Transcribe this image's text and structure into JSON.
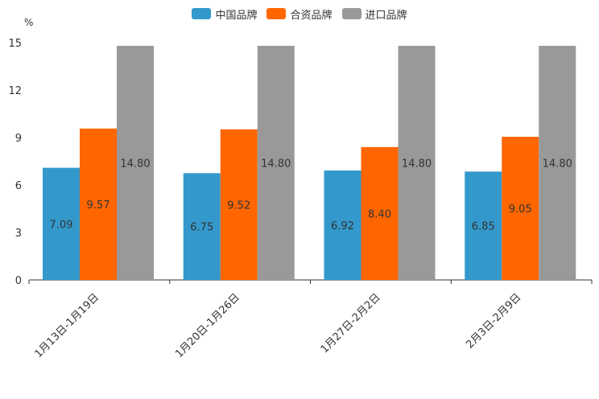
{
  "chart_data": {
    "type": "bar",
    "unit": "%",
    "categories": [
      "1月13日-1月19日",
      "1月20日-1月26日",
      "1月27日-2月2日",
      "2月3日-2月9日"
    ],
    "series": [
      {
        "name": "中国品牌",
        "color": "#3399cc",
        "values": [
          7.09,
          6.75,
          6.92,
          6.85
        ],
        "labels": [
          "7.09",
          "6.75",
          "6.92",
          "6.85"
        ]
      },
      {
        "name": "合资品牌",
        "color": "#ff6600",
        "values": [
          9.57,
          9.52,
          8.4,
          9.05
        ],
        "labels": [
          "9.57",
          "9.52",
          "8.40",
          "9.05"
        ]
      },
      {
        "name": "进口品牌",
        "color": "#999999",
        "values": [
          14.8,
          14.8,
          14.8,
          14.8
        ],
        "labels": [
          "14.80",
          "14.80",
          "14.80",
          "14.80"
        ]
      }
    ],
    "yticks": [
      "0",
      "3",
      "6",
      "9",
      "12",
      "15"
    ],
    "ylim": [
      0,
      15
    ],
    "legend_position": "top-center",
    "grid": false
  }
}
